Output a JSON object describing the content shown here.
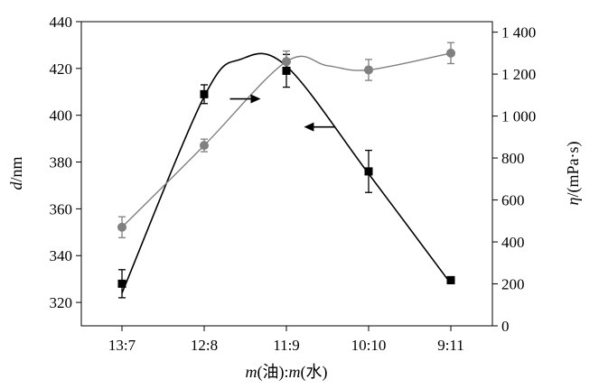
{
  "chart_data": {
    "type": "line",
    "xlabel": "m(油):m(水)",
    "xlabel_parts": {
      "italic_a": "m",
      "paren_a": "(油):",
      "italic_b": "m",
      "paren_b": "(水)"
    },
    "categories": [
      "13:7",
      "12:8",
      "11:9",
      "10:10",
      "9:11"
    ],
    "left_axis": {
      "label": "d/nm",
      "label_parts": {
        "italic": "d",
        "rest": "/nm"
      },
      "ylim": [
        310,
        440
      ],
      "ticks": [
        320,
        340,
        360,
        380,
        400,
        420,
        440
      ]
    },
    "right_axis": {
      "label": "η/(mPa·s)",
      "label_parts": {
        "italic": "η",
        "rest": "/(mPa·s)"
      },
      "ylim": [
        0,
        1450
      ],
      "ticks": [
        0,
        200,
        400,
        600,
        800,
        1000,
        1200,
        1400
      ],
      "tick_labels": [
        "0",
        "200",
        "400",
        "600",
        "800",
        "1 000",
        "1 200",
        "1 400"
      ]
    },
    "series": [
      {
        "axis": "left",
        "marker": "square",
        "color": "#000000",
        "values": [
          328,
          409,
          419,
          376,
          329.5
        ],
        "errors": [
          6,
          4,
          7,
          9,
          1.5
        ],
        "fit_curve": [
          [
            0,
            324
          ],
          [
            1,
            408
          ],
          [
            1.45,
            424
          ],
          [
            2,
            421
          ],
          [
            3,
            375
          ],
          [
            4,
            328
          ]
        ]
      },
      {
        "axis": "right",
        "marker": "circle",
        "color": "#808080",
        "values": [
          470,
          860,
          1260,
          1220,
          1300
        ],
        "errors": [
          50,
          30,
          50,
          50,
          50
        ],
        "fit_curve": [
          [
            0,
            470
          ],
          [
            1,
            860
          ],
          [
            2,
            1260
          ],
          [
            2.5,
            1240
          ],
          [
            3,
            1220
          ],
          [
            4,
            1300
          ]
        ]
      }
    ],
    "annotations": [
      {
        "type": "arrow",
        "direction": "right",
        "at_category": 1.5,
        "at_left_value": 407,
        "points_to": "right"
      },
      {
        "type": "arrow",
        "direction": "left",
        "at_category": 2.4,
        "at_left_value": 395,
        "points_to": "left"
      }
    ],
    "grid": false,
    "legend": "none"
  }
}
